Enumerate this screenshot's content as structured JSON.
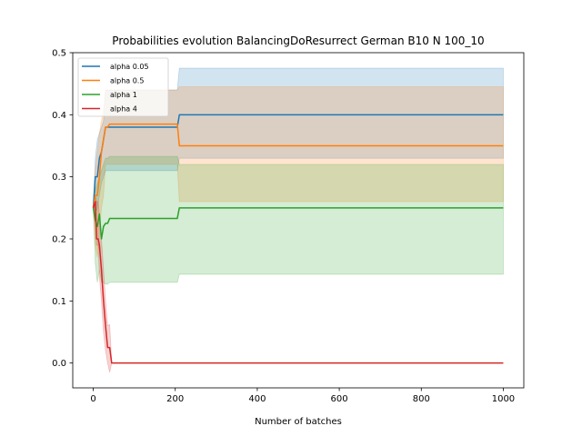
{
  "chart_data": {
    "type": "line",
    "title": "Probabilities evolution BalancingDoResurrect German B10 N 100_10",
    "xlabel": "Number of batches",
    "ylabel": "",
    "xlim": [
      -50,
      1050
    ],
    "ylim": [
      -0.04,
      0.5
    ],
    "xticks": [
      0,
      200,
      400,
      600,
      800,
      1000
    ],
    "yticks": [
      0.0,
      0.1,
      0.2,
      0.3,
      0.4,
      0.5
    ],
    "grid": false,
    "legend_position": "top-left",
    "series": [
      {
        "name": "alpha 0.05",
        "color": "#1f77b4",
        "x": [
          0,
          5,
          10,
          15,
          20,
          25,
          30,
          35,
          40,
          205,
          210,
          1000
        ],
        "y": [
          0.25,
          0.3,
          0.3,
          0.33,
          0.34,
          0.36,
          0.38,
          0.38,
          0.38,
          0.38,
          0.4,
          0.4
        ],
        "band_low": [
          0.25,
          0.24,
          0.25,
          0.27,
          0.29,
          0.3,
          0.31,
          0.31,
          0.31,
          0.31,
          0.33,
          0.33
        ],
        "band_high": [
          0.25,
          0.33,
          0.36,
          0.37,
          0.38,
          0.39,
          0.44,
          0.44,
          0.44,
          0.44,
          0.475,
          0.475
        ]
      },
      {
        "name": "alpha 0.5",
        "color": "#ff7f0e",
        "x": [
          0,
          5,
          10,
          15,
          20,
          25,
          30,
          35,
          40,
          205,
          210,
          1000
        ],
        "y": [
          0.25,
          0.27,
          0.27,
          0.3,
          0.34,
          0.36,
          0.38,
          0.38,
          0.385,
          0.385,
          0.35,
          0.35
        ],
        "band_low": [
          0.25,
          0.19,
          0.17,
          0.21,
          0.25,
          0.27,
          0.32,
          0.32,
          0.32,
          0.32,
          0.26,
          0.26
        ],
        "band_high": [
          0.25,
          0.31,
          0.34,
          0.37,
          0.39,
          0.41,
          0.44,
          0.44,
          0.44,
          0.44,
          0.445,
          0.445
        ]
      },
      {
        "name": "alpha 1",
        "color": "#2ca02c",
        "x": [
          0,
          5,
          10,
          15,
          20,
          25,
          30,
          35,
          40,
          205,
          210,
          1000
        ],
        "y": [
          0.25,
          0.23,
          0.22,
          0.24,
          0.2,
          0.22,
          0.225,
          0.225,
          0.233,
          0.233,
          0.25,
          0.25
        ],
        "band_low": [
          0.25,
          0.16,
          0.13,
          0.15,
          0.13,
          0.13,
          0.127,
          0.127,
          0.13,
          0.13,
          0.143,
          0.143
        ],
        "band_high": [
          0.25,
          0.28,
          0.29,
          0.3,
          0.31,
          0.32,
          0.33,
          0.33,
          0.333,
          0.333,
          0.32,
          0.32
        ]
      },
      {
        "name": "alpha 4",
        "color": "#d62728",
        "x": [
          0,
          5,
          8,
          12,
          15,
          20,
          25,
          30,
          35,
          40,
          45,
          1000
        ],
        "y": [
          0.25,
          0.26,
          0.2,
          0.2,
          0.19,
          0.15,
          0.1,
          0.06,
          0.025,
          0.025,
          0.0,
          0.0
        ],
        "band_low": [
          0.25,
          0.23,
          0.19,
          0.19,
          0.14,
          0.1,
          0.05,
          0.02,
          0.0,
          -0.015,
          0.0,
          0.0
        ],
        "band_high": [
          0.25,
          0.27,
          0.26,
          0.26,
          0.24,
          0.2,
          0.15,
          0.1,
          0.06,
          0.062,
          0.0,
          0.0
        ]
      }
    ]
  }
}
